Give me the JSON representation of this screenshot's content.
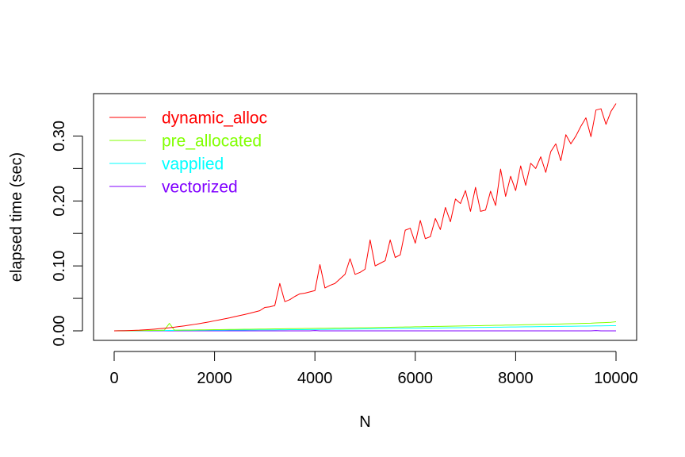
{
  "chart_data": {
    "type": "line",
    "title": "",
    "xlabel": "N",
    "ylabel": "elapsed time (sec)",
    "xlim": [
      0,
      10000
    ],
    "ylim": [
      0,
      0.35
    ],
    "xticks": [
      0,
      2000,
      4000,
      6000,
      8000,
      10000
    ],
    "xtick_labels": [
      "0",
      "2000",
      "4000",
      "6000",
      "8000",
      "10000"
    ],
    "yticks": [
      0,
      0.05,
      0.1,
      0.15,
      0.2,
      0.25,
      0.3
    ],
    "ytick_labels": [
      "0.00",
      "",
      "0.10",
      "",
      "0.20",
      "",
      "0.30"
    ],
    "grid": false,
    "legend_position": "top-left",
    "x": [
      0,
      100,
      200,
      300,
      400,
      500,
      600,
      700,
      800,
      900,
      1000,
      1100,
      1200,
      1300,
      1400,
      1500,
      1600,
      1700,
      1800,
      1900,
      2000,
      2100,
      2200,
      2300,
      2400,
      2500,
      2600,
      2700,
      2800,
      2900,
      3000,
      3100,
      3200,
      3300,
      3400,
      3500,
      3600,
      3700,
      3800,
      3900,
      4000,
      4100,
      4200,
      4300,
      4400,
      4500,
      4600,
      4700,
      4800,
      4900,
      5000,
      5100,
      5200,
      5300,
      5400,
      5500,
      5600,
      5700,
      5800,
      5900,
      6000,
      6100,
      6200,
      6300,
      6400,
      6500,
      6600,
      6700,
      6800,
      6900,
      7000,
      7100,
      7200,
      7300,
      7400,
      7500,
      7600,
      7700,
      7800,
      7900,
      8000,
      8100,
      8200,
      8300,
      8400,
      8500,
      8600,
      8700,
      8800,
      8900,
      9000,
      9100,
      9200,
      9300,
      9400,
      9500,
      9600,
      9700,
      9800,
      9900,
      10000
    ],
    "series": [
      {
        "name": "dynamic_alloc",
        "color": "#ff0000",
        "values": [
          0,
          0.0001,
          0.0002,
          0.0004,
          0.0007,
          0.001,
          0.0015,
          0.002,
          0.0026,
          0.0033,
          0.004,
          0.0048,
          0.0057,
          0.0067,
          0.0077,
          0.0088,
          0.01,
          0.0112,
          0.0125,
          0.0139,
          0.0155,
          0.017,
          0.0185,
          0.02,
          0.0218,
          0.0235,
          0.0252,
          0.027,
          0.029,
          0.031,
          0.036,
          0.037,
          0.039,
          0.073,
          0.045,
          0.048,
          0.053,
          0.057,
          0.058,
          0.06,
          0.062,
          0.102,
          0.066,
          0.07,
          0.073,
          0.08,
          0.087,
          0.111,
          0.087,
          0.09,
          0.095,
          0.14,
          0.1,
          0.104,
          0.108,
          0.14,
          0.113,
          0.117,
          0.155,
          0.158,
          0.135,
          0.17,
          0.142,
          0.145,
          0.173,
          0.156,
          0.19,
          0.168,
          0.203,
          0.196,
          0.216,
          0.184,
          0.221,
          0.184,
          0.186,
          0.215,
          0.193,
          0.249,
          0.207,
          0.238,
          0.216,
          0.254,
          0.224,
          0.258,
          0.25,
          0.268,
          0.244,
          0.276,
          0.288,
          0.262,
          0.302,
          0.288,
          0.3,
          0.315,
          0.328,
          0.299,
          0.34,
          0.342,
          0.318,
          0.338,
          0.35
        ]
      },
      {
        "name": "pre_allocated",
        "color": "#80ff00",
        "values": [
          0,
          0.0001,
          0.0002,
          0.0002,
          0.0003,
          0.0004,
          0.0005,
          0.0006,
          0.0007,
          0.0008,
          0.001,
          0.0115,
          0.001,
          0.0011,
          0.0012,
          0.0013,
          0.0014,
          0.0015,
          0.0016,
          0.0017,
          0.0018,
          0.0019,
          0.002,
          0.0021,
          0.0022,
          0.0023,
          0.0024,
          0.0025,
          0.0026,
          0.0027,
          0.0028,
          0.0029,
          0.003,
          0.0031,
          0.0032,
          0.0033,
          0.0034,
          0.0035,
          0.0036,
          0.0037,
          0.0038,
          0.0039,
          0.004,
          0.0041,
          0.0042,
          0.0043,
          0.0044,
          0.0045,
          0.0046,
          0.0047,
          0.0048,
          0.0049,
          0.005,
          0.0052,
          0.0053,
          0.0055,
          0.0056,
          0.0058,
          0.0059,
          0.006,
          0.0062,
          0.0063,
          0.0065,
          0.0066,
          0.0068,
          0.0069,
          0.007,
          0.0072,
          0.0073,
          0.0075,
          0.0076,
          0.0078,
          0.0079,
          0.008,
          0.0082,
          0.0083,
          0.0085,
          0.0086,
          0.0088,
          0.0089,
          0.009,
          0.0092,
          0.0094,
          0.0095,
          0.0097,
          0.0099,
          0.01,
          0.0102,
          0.0104,
          0.0106,
          0.0108,
          0.011,
          0.0112,
          0.0114,
          0.0116,
          0.0118,
          0.0122,
          0.0125,
          0.0128,
          0.0132,
          0.014
        ]
      },
      {
        "name": "vapplied",
        "color": "#00ffff",
        "values": [
          0,
          0.0001,
          0.0001,
          0.0002,
          0.0002,
          0.0003,
          0.0003,
          0.0004,
          0.0004,
          0.0005,
          0.0005,
          0.0006,
          0.0006,
          0.0007,
          0.0007,
          0.0008,
          0.0008,
          0.0009,
          0.0009,
          0.001,
          0.001,
          0.0011,
          0.0011,
          0.0012,
          0.0012,
          0.0013,
          0.0013,
          0.0014,
          0.0014,
          0.0015,
          0.0015,
          0.0016,
          0.0016,
          0.0017,
          0.0017,
          0.0018,
          0.0018,
          0.0019,
          0.0019,
          0.002,
          0.002,
          0.0021,
          0.0022,
          0.0023,
          0.0024,
          0.0025,
          0.0026,
          0.0027,
          0.0028,
          0.0029,
          0.003,
          0.0031,
          0.0032,
          0.0033,
          0.0034,
          0.0035,
          0.0036,
          0.0037,
          0.0038,
          0.0039,
          0.004,
          0.0041,
          0.0042,
          0.0043,
          0.0044,
          0.0045,
          0.0046,
          0.0047,
          0.0048,
          0.0049,
          0.005,
          0.0051,
          0.0052,
          0.0053,
          0.0054,
          0.0055,
          0.0056,
          0.0057,
          0.0058,
          0.0059,
          0.006,
          0.0061,
          0.0062,
          0.0063,
          0.0064,
          0.0065,
          0.0066,
          0.0067,
          0.0068,
          0.0069,
          0.007,
          0.0071,
          0.0072,
          0.0073,
          0.0074,
          0.0075,
          0.0076,
          0.0077,
          0.0078,
          0.0079,
          0.008
        ]
      },
      {
        "name": "vectorized",
        "color": "#8000ff",
        "values": [
          0,
          0,
          0.0001,
          0,
          0,
          0,
          0,
          0.0001,
          0,
          0,
          0,
          0,
          0.0001,
          0,
          0,
          0,
          0,
          0,
          0,
          0,
          0,
          0,
          0,
          0,
          0,
          0,
          0,
          0,
          0,
          0,
          0,
          0,
          0,
          0,
          0,
          0,
          0,
          0,
          0,
          0,
          0.0004,
          0,
          0,
          0,
          0,
          0,
          0,
          0,
          0,
          0,
          0,
          0,
          0,
          0,
          0,
          0,
          0,
          0,
          0,
          0,
          0,
          0,
          0,
          0,
          0,
          0,
          0,
          0,
          0,
          0,
          0,
          0,
          0,
          0,
          0,
          0,
          0,
          0,
          0,
          0,
          0,
          0,
          0,
          0,
          0,
          0,
          0,
          0,
          0,
          0,
          0,
          0,
          0,
          0,
          0,
          0,
          0.0004,
          0,
          0,
          0,
          0
        ]
      }
    ]
  }
}
